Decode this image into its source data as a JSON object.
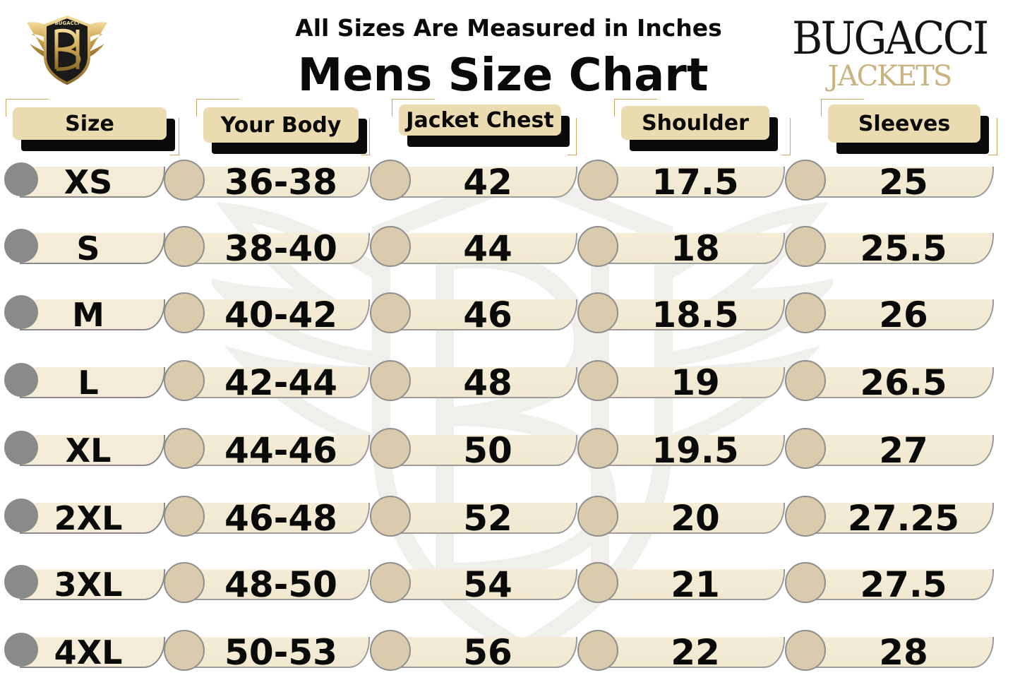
{
  "header": {
    "subtitle": "All Sizes Are Measured in Inches",
    "title": "Mens Size Chart",
    "brand_name": "BUGACCI",
    "brand_sub": "JACKETS",
    "logo_text": "BUGACCI"
  },
  "columns": [
    {
      "key": "size",
      "label": "Size"
    },
    {
      "key": "body",
      "label": "Your Body"
    },
    {
      "key": "chest",
      "label": "Jacket Chest"
    },
    {
      "key": "shoulder",
      "label": "Shoulder"
    },
    {
      "key": "sleeves",
      "label": "Sleeves"
    }
  ],
  "rows": [
    {
      "size": "XS",
      "body": "36-38",
      "chest": "42",
      "shoulder": "17.5",
      "sleeves": "25"
    },
    {
      "size": "S",
      "body": "38-40",
      "chest": "44",
      "shoulder": "18",
      "sleeves": "25.5"
    },
    {
      "size": "M",
      "body": "40-42",
      "chest": "46",
      "shoulder": "18.5",
      "sleeves": "26"
    },
    {
      "size": "L",
      "body": "42-44",
      "chest": "48",
      "shoulder": "19",
      "sleeves": "26.5"
    },
    {
      "size": "XL",
      "body": "44-46",
      "chest": "50",
      "shoulder": "19.5",
      "sleeves": "27"
    },
    {
      "size": "2XL",
      "body": "46-48",
      "chest": "52",
      "shoulder": "20",
      "sleeves": "27.25"
    },
    {
      "size": "3XL",
      "body": "48-50",
      "chest": "54",
      "shoulder": "21",
      "sleeves": "27.5"
    },
    {
      "size": "4XL",
      "body": "50-53",
      "chest": "56",
      "shoulder": "22",
      "sleeves": "28"
    }
  ],
  "colors": {
    "accent_gold": "#c9a763",
    "pill_beige": "#ebdbb0",
    "bar_cream": "#f4ecd6",
    "circle_tan": "#d9cbab",
    "dot_gray": "#8a8a8a",
    "text": "#0a0a0a"
  },
  "icons": {
    "logo": "winged-shield-emblem",
    "watermark": "winged-shield-emblem"
  }
}
